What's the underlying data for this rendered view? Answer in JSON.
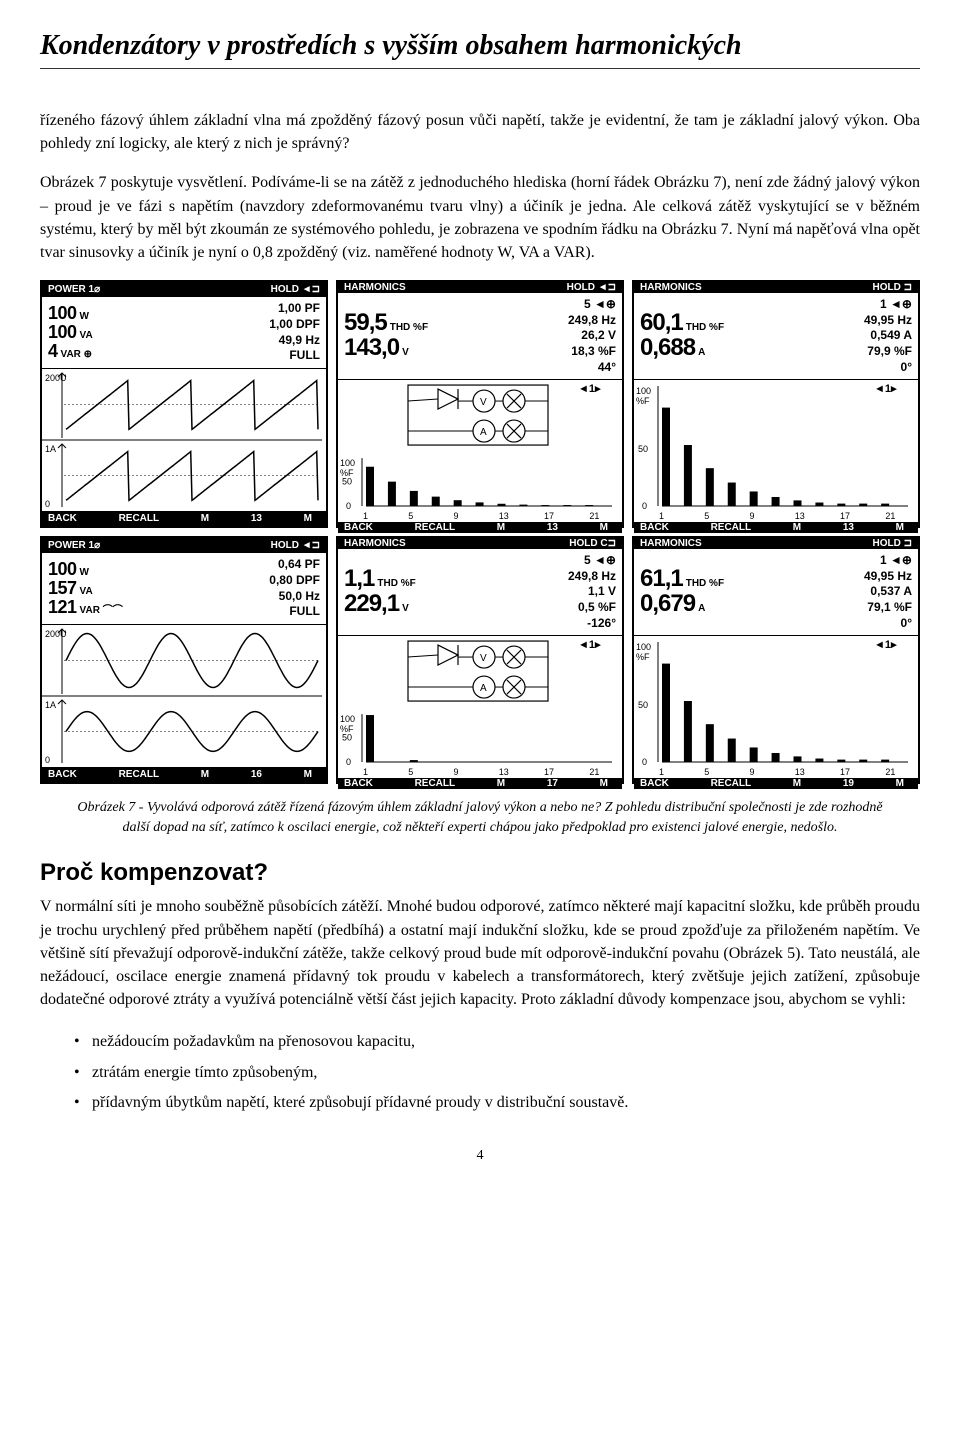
{
  "title": "Kondenzátory v prostředích s vyšším obsahem harmonických",
  "para1": "řízeného fázový úhlem základní vlna má zpožděný fázový posun vůči napětí, takže je evidentní, že tam je základní jalový výkon. Oba pohledy zní logicky, ale který z nich je správný?",
  "para2": "Obrázek 7 poskytuje vysvětlení. Podíváme-li se na zátěž z jednoduchého hlediska (horní řádek Obrázku 7), není zde žádný jalový výkon – proud je ve fázi s napětím (navzdory zdeformovanému tvaru vlny) a účiník je jedna. Ale celková zátěž vyskytující se v běžném systému, který by měl být zkoumán ze systémového pohledu, je zobrazena ve spodním řádku na Obrázku 7. Nyní má napěťová vlna opět tvar sinusovky a účiník je nyní o 0,8 zpožděný (viz. naměřené hodnoty W, VA a VAR).",
  "caption": "Obrázek 7 - Vyvolává odporová zátěž řízená fázovým úhlem základní jalový výkon a nebo ne? Z pohledu distribuční společnosti je zde rozhodně další dopad na síť, zatímco k oscilaci energie, což někteří experti chápou jako předpoklad pro existenci jalové energie, nedošlo.",
  "section_title": "Proč kompenzovat?",
  "para3": "V normální síti je mnoho souběžně působících zátěží. Mnohé budou odporové, zatímco některé mají kapacitní složku, kde průběh proudu je trochu urychlený před průběhem napětí (předbíhá) a ostatní mají indukční složku, kde se proud zpožďuje za přiloženém napětím. Ve většině sítí převažují odporově-indukční zátěže, takže celkový proud bude mít odporově-indukční povahu (Obrázek 5). Tato neustálá, ale nežádoucí, oscilace energie znamená přídavný tok proudu v kabelech a transformátorech, který zvětšuje jejich zatížení, způsobuje dodatečné odporové ztráty a využívá potenciálně větší část jejich kapacity. Proto základní důvody kompenzace jsou, abychom se vyhli:",
  "bullets": [
    "nežádoucím požadavkům na přenosovou kapacitu,",
    "ztrátám energie tímto způsobeným,",
    "přídavným úbytkům napětí, které způsobují přídavné proudy v distribuční soustavě."
  ],
  "page_num": "4",
  "screens": [
    {
      "header_l": "POWER 1⌀",
      "header_r": "HOLD  ◄⊐",
      "left": [
        {
          "v": "100",
          "u": "W"
        },
        {
          "v": "100",
          "u": "VA"
        },
        {
          "v": "4",
          "u": "VAR   ⊕"
        }
      ],
      "right": [
        "1,00 PF",
        "1,00 DPF",
        "49,9 Hz",
        "FULL"
      ],
      "graph_type": "sawtooth",
      "y_label": "200U",
      "footer": [
        "BACK",
        "RECALL",
        "M",
        "13",
        "M"
      ]
    },
    {
      "header_l": "HARMONICS",
      "header_r": "HOLD  ◄⊐",
      "left": [
        {
          "v": "59,5",
          "u": "THD %F"
        },
        {
          "v": "143,0",
          "u": "V"
        }
      ],
      "right": [
        "5 ◄⊕",
        "249,8 Hz",
        "26,2 V",
        "18,3 %F",
        "44°"
      ],
      "graph_type": "circuit_bars",
      "bars_desc": true,
      "footer": [
        "BACK",
        "RECALL",
        "M",
        "13",
        "M"
      ]
    },
    {
      "header_l": "HARMONICS",
      "header_r": "HOLD  ⊐",
      "left": [
        {
          "v": "60,1",
          "u": "THD %F"
        },
        {
          "v": "0,688",
          "u": "A"
        }
      ],
      "right": [
        "1 ◄⊕",
        "49,95 Hz",
        "0,549 A",
        "79,9 %F",
        "0°"
      ],
      "graph_type": "bars",
      "bars_desc": true,
      "footer": [
        "BACK",
        "RECALL",
        "M",
        "13",
        "M"
      ]
    },
    {
      "header_l": "POWER 1⌀",
      "header_r": "HOLD  ◄⊐",
      "left": [
        {
          "v": "100",
          "u": "W"
        },
        {
          "v": "157",
          "u": "VA"
        },
        {
          "v": "121",
          "u": "VAR   ⌒⌒"
        }
      ],
      "right": [
        "0,64 PF",
        "0,80 DPF",
        "50,0 Hz",
        "FULL"
      ],
      "graph_type": "sine",
      "y_label": "200U",
      "footer": [
        "BACK",
        "RECALL",
        "M",
        "16",
        "M"
      ]
    },
    {
      "header_l": "HARMONICS",
      "header_r": "HOLD  C⊐",
      "left": [
        {
          "v": "1,1",
          "u": "THD %F"
        },
        {
          "v": "229,1",
          "u": "V"
        }
      ],
      "right": [
        "5 ◄⊕",
        "249,8 Hz",
        "1,1 V",
        "0,5 %F",
        "-126°"
      ],
      "graph_type": "circuit_bars_single",
      "footer": [
        "BACK",
        "RECALL",
        "M",
        "17",
        "M"
      ]
    },
    {
      "header_l": "HARMONICS",
      "header_r": "HOLD  ⊐",
      "left": [
        {
          "v": "61,1",
          "u": "THD %F"
        },
        {
          "v": "0,679",
          "u": "A"
        }
      ],
      "right": [
        "1 ◄⊕",
        "49,95 Hz",
        "0,537 A",
        "79,1 %F",
        "0°"
      ],
      "graph_type": "bars",
      "bars_desc": true,
      "footer": [
        "BACK",
        "RECALL",
        "M",
        "19",
        "M"
      ]
    }
  ],
  "bar_xlabels": [
    "1",
    "5",
    "9",
    "13",
    "17",
    "21"
  ],
  "bar_ylabels": [
    "100",
    "%F",
    "50",
    "0"
  ],
  "colors": {
    "screen_bg": "#ffffff",
    "screen_fg": "#000000"
  }
}
